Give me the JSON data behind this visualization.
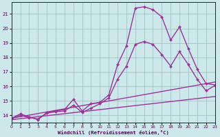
{
  "bg_color": "#cce8ea",
  "grid_color": "#99bbbb",
  "line_color": "#993399",
  "xlim": [
    0,
    23
  ],
  "ylim": [
    13.5,
    21.8
  ],
  "yticks": [
    14,
    15,
    16,
    17,
    18,
    19,
    20,
    21
  ],
  "xticks": [
    0,
    1,
    2,
    3,
    4,
    5,
    6,
    7,
    8,
    9,
    10,
    11,
    12,
    13,
    14,
    15,
    16,
    17,
    18,
    19,
    20,
    21,
    22,
    23
  ],
  "xlabel": "Windchill (Refroidissement éolien,°C)",
  "series": [
    {
      "x": [
        0,
        1,
        2,
        3,
        4,
        5,
        6,
        7,
        8,
        9,
        10,
        11,
        12,
        13,
        14,
        15,
        16,
        17,
        18,
        19,
        20,
        21,
        22,
        23
      ],
      "y": [
        13.8,
        14.1,
        13.9,
        13.7,
        14.2,
        14.3,
        14.4,
        15.1,
        14.3,
        14.8,
        14.9,
        15.4,
        17.5,
        18.8,
        21.4,
        21.5,
        21.3,
        20.8,
        19.2,
        20.1,
        18.6,
        17.2,
        16.2,
        16.1
      ],
      "has_marker": true,
      "lw": 1.0
    },
    {
      "x": [
        0,
        1,
        2,
        3,
        4,
        5,
        6,
        7,
        8,
        9,
        10,
        11,
        12,
        13,
        14,
        15,
        16,
        17,
        18,
        19,
        20,
        21,
        22,
        23
      ],
      "y": [
        13.8,
        14.0,
        13.85,
        13.75,
        14.15,
        14.25,
        14.3,
        14.7,
        14.2,
        14.5,
        14.8,
        15.2,
        16.5,
        17.4,
        18.9,
        19.1,
        18.9,
        18.2,
        17.4,
        18.4,
        17.5,
        16.5,
        15.7,
        16.05
      ],
      "has_marker": true,
      "lw": 1.0
    },
    {
      "x": [
        0,
        23
      ],
      "y": [
        13.8,
        16.3
      ],
      "has_marker": false,
      "lw": 1.0
    },
    {
      "x": [
        0,
        23
      ],
      "y": [
        13.7,
        15.3
      ],
      "has_marker": false,
      "lw": 1.0
    }
  ]
}
